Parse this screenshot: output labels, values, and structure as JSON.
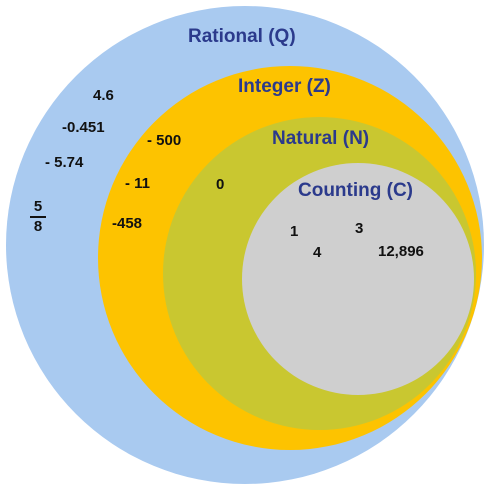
{
  "sets": {
    "rational": {
      "label": "Rational (Q)",
      "color": "#a9caf0"
    },
    "integer": {
      "label": "Integer (Z)",
      "color": "#fdc300"
    },
    "natural": {
      "label": "Natural (N)",
      "color": "#c9c730"
    },
    "counting": {
      "label": "Counting (C)",
      "color": "#cfcfcf"
    }
  },
  "label_color": "#2b3a8c",
  "rational_numbers": {
    "n1": "4.6",
    "n2": "-0.451",
    "n3": "- 5.74",
    "fraction_numerator": "5",
    "fraction_denominator": "8"
  },
  "integer_numbers": {
    "n1": "- 500",
    "n2": "- 11",
    "n3": "-458"
  },
  "natural_numbers": {
    "n1": "0"
  },
  "counting_numbers": {
    "n1": "1",
    "n2": "3",
    "n3": "4",
    "n4": "12,896"
  }
}
